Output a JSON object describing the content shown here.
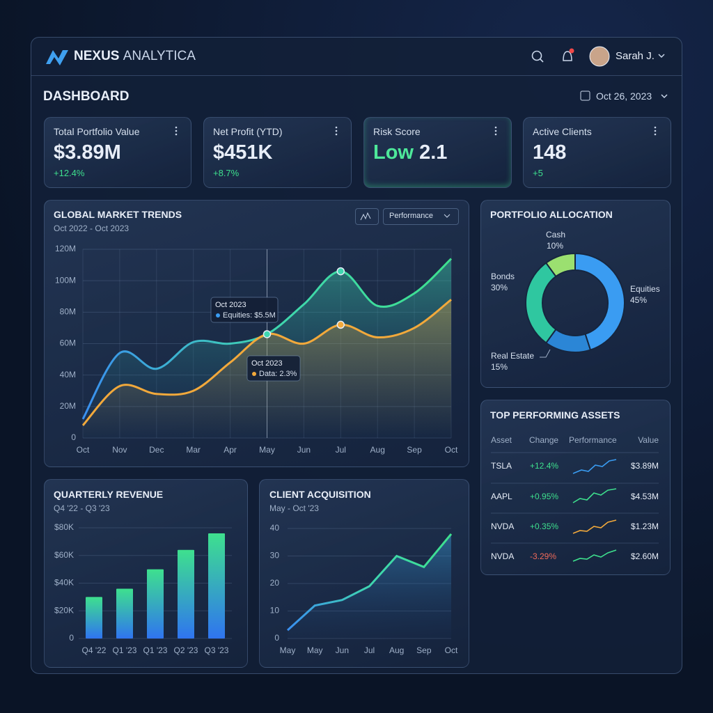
{
  "header": {
    "brand_bold": "NEXUS",
    "brand_light": "ANALYTICA",
    "user": "Sarah J."
  },
  "page_title": "DASHBOARD",
  "date": "Oct 26, 2023",
  "kpis": [
    {
      "label": "Total Portfolio Value",
      "value": "$3.89M",
      "change": "+12.4%"
    },
    {
      "label": "Net Profit (YTD)",
      "value": "$451K",
      "change": "+8.7%"
    },
    {
      "label": "Risk Score",
      "level": "Low",
      "value": "2.1"
    },
    {
      "label": "Active Clients",
      "value": "148",
      "change": "+5"
    }
  ],
  "market": {
    "type": "line",
    "title": "GLOBAL MARKET TRENDS",
    "subtitle": "Oct 2022 - Oct 2023",
    "dropdown": "Performance",
    "categories": [
      "Oct",
      "Nov",
      "Dec",
      "Mar",
      "Apr",
      "May",
      "Jun",
      "Jul",
      "Aug",
      "Sep",
      "Oct"
    ],
    "series": [
      {
        "name": "Equities",
        "color": "#3fd6b0",
        "values": [
          12,
          54,
          44,
          61,
          60,
          66,
          85,
          106,
          84,
          92,
          114
        ]
      },
      {
        "name": "Data",
        "color": "#f2a93b",
        "values": [
          8,
          33,
          28,
          30,
          48,
          66,
          60,
          72,
          64,
          70,
          88
        ]
      }
    ],
    "ylim": [
      0,
      120
    ],
    "yticks": [
      0,
      {
        "value": 20,
        "label": "20M"
      },
      {
        "value": 40,
        "label": "40M"
      },
      {
        "value": 60,
        "label": "60M"
      },
      {
        "value": 80,
        "label": "80M"
      },
      {
        "value": 100,
        "label": "100M"
      },
      {
        "value": 120,
        "label": "120M"
      }
    ],
    "annotations": [
      {
        "title": "Oct 2023",
        "text": "Equities: $5.5M"
      },
      {
        "title": "Oct 2023",
        "text": "Data: 2.3%"
      }
    ]
  },
  "allocation": {
    "type": "pie",
    "title": "PORTFOLIO ALLOCATION",
    "categories": [
      "Equities",
      "Real Estate",
      "Bonds",
      "Cash"
    ],
    "values": [
      45,
      15,
      30,
      10
    ],
    "value_labels": [
      "45%",
      "15%",
      "30%",
      "10%"
    ],
    "colors": [
      "#3a9cf2",
      "#2b86d6",
      "#2fc7a0",
      "#9be070"
    ]
  },
  "revenue": {
    "type": "bar",
    "title": "QUARTERLY REVENUE",
    "subtitle": "Q4 '22 - Q3 '23",
    "categories": [
      "Q4 '22",
      "Q1 '23",
      "Q1 '23",
      "Q2 '23",
      "Q3 '23"
    ],
    "values": [
      30,
      36,
      50,
      64,
      76
    ],
    "ylim": [
      0,
      80
    ],
    "yticks": [
      0,
      {
        "value": 20,
        "label": "$20K"
      },
      {
        "value": 40,
        "label": "$40K"
      },
      {
        "value": 60,
        "label": "$60K"
      },
      {
        "value": 80,
        "label": "$80K"
      }
    ],
    "color": "#3ee08e"
  },
  "clients": {
    "type": "area",
    "title": "CLIENT ACQUISITION",
    "subtitle": "May - Oct '23",
    "categories": [
      "May",
      "May",
      "Jun",
      "Jul",
      "Aug",
      "Sep",
      "Oct"
    ],
    "values": [
      3,
      12,
      14,
      19,
      30,
      26,
      38
    ],
    "ylim": [
      0,
      40
    ],
    "yticks": [
      0,
      10,
      20,
      30,
      40
    ],
    "color": "#3fb3f0"
  },
  "assets": {
    "title": "TOP PERFORMING ASSETS",
    "columns": [
      "Asset",
      "Change",
      "Performance",
      "Value"
    ],
    "rows": [
      [
        "TSLA",
        "+12.4%",
        "$3.89M"
      ],
      [
        "AAPL",
        "+0.95%",
        "$4.53M"
      ],
      [
        "NVDA",
        "+0.35%",
        "$1.23M"
      ],
      [
        "NVDA",
        "-3.29%",
        "$2.60M"
      ]
    ]
  }
}
